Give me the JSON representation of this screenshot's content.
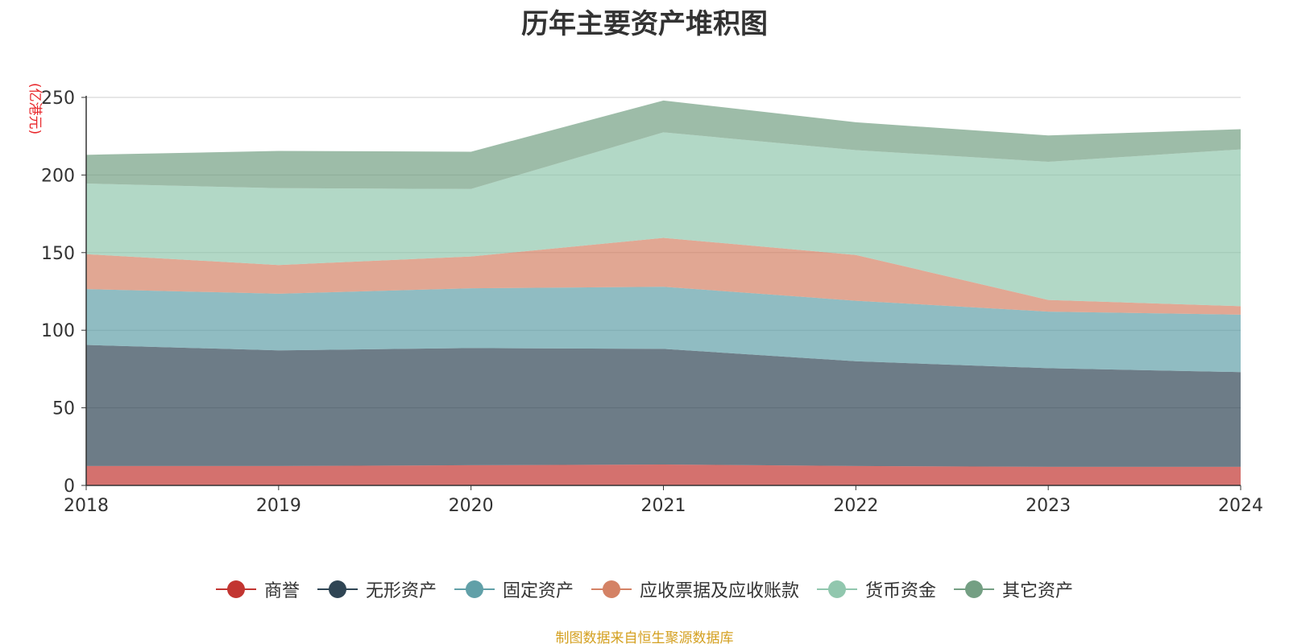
{
  "chart_data": {
    "type": "area",
    "title": "历年主要资产堆积图",
    "ylabel": "(亿港元)",
    "xlabel": "",
    "categories": [
      "2018",
      "2019",
      "2020",
      "2021",
      "2022",
      "2023",
      "2024"
    ],
    "ylim": [
      0,
      250
    ],
    "yticks": [
      0,
      50,
      100,
      150,
      200,
      250
    ],
    "stacked": true,
    "grid": true,
    "legend_position": "bottom",
    "series": [
      {
        "name": "商誉",
        "color": "#c23531",
        "values": [
          12.5,
          12.5,
          13,
          13.5,
          12.5,
          12,
          12
        ]
      },
      {
        "name": "无形资产",
        "color": "#2f4554",
        "values": [
          78,
          74.5,
          75.5,
          74.5,
          67.5,
          63.5,
          61
        ]
      },
      {
        "name": "固定资产",
        "color": "#61a0a8",
        "values": [
          36,
          36.5,
          38.5,
          40,
          39,
          36.5,
          37
        ]
      },
      {
        "name": "应收票据及应收账款",
        "color": "#d48265",
        "values": [
          22.5,
          18.5,
          20.5,
          31.5,
          29.5,
          7.5,
          5.5
        ]
      },
      {
        "name": "货币资金",
        "color": "#91c7ae",
        "values": [
          45.5,
          49.5,
          43.5,
          68,
          67.5,
          89,
          101
        ]
      },
      {
        "name": "其它资产",
        "color": "#749f83",
        "values": [
          18.5,
          24,
          24,
          20.5,
          18,
          17,
          13
        ]
      }
    ],
    "source_note": "制图数据来自恒生聚源数据库"
  }
}
